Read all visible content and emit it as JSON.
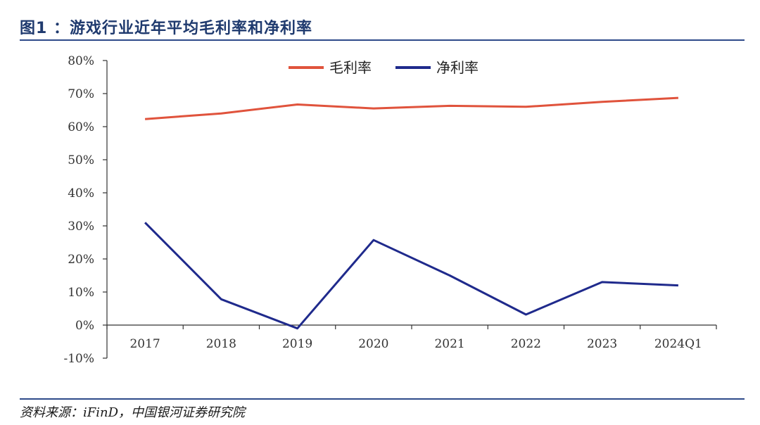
{
  "figure": {
    "title": "图1 ：游戏行业近年平均毛利率和净利率",
    "source": "资料来源：iFinD，中国银河证券研究院"
  },
  "colors": {
    "gross": "#e0533c",
    "net": "#1f2a8c",
    "axis": "#333333",
    "rule": "#2e4a8a"
  },
  "chart_data": {
    "type": "line",
    "title": "",
    "xlabel": "",
    "ylabel": "",
    "categories": [
      "2017",
      "2018",
      "2019",
      "2020",
      "2021",
      "2022",
      "2023",
      "2024Q1"
    ],
    "y_ticks": [
      "80%",
      "70%",
      "60%",
      "50%",
      "40%",
      "30%",
      "20%",
      "10%",
      "0%",
      "-10%"
    ],
    "ylim": [
      -10,
      80
    ],
    "grid": false,
    "legend_position": "top-center",
    "series": [
      {
        "name": "毛利率",
        "values": [
          62.3,
          64.0,
          66.7,
          65.5,
          66.3,
          66.0,
          67.5,
          68.7
        ]
      },
      {
        "name": "净利率",
        "values": [
          31.0,
          7.8,
          -1.0,
          25.7,
          15.0,
          3.2,
          13.0,
          12.0
        ]
      }
    ]
  }
}
